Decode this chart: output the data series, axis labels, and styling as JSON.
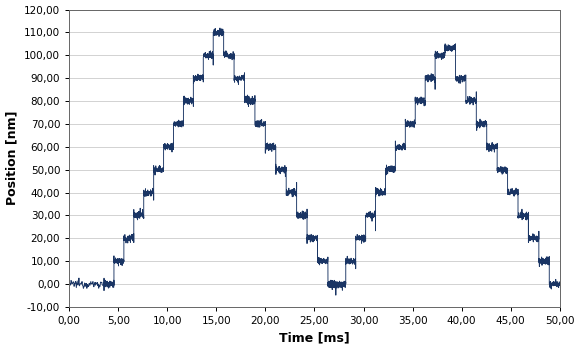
{
  "title": "",
  "xlabel": "Time [ms]",
  "ylabel": "Position [nm]",
  "xlim": [
    0,
    50
  ],
  "ylim": [
    -10,
    120
  ],
  "xticks": [
    0,
    5,
    10,
    15,
    20,
    25,
    30,
    35,
    40,
    45,
    50
  ],
  "yticks": [
    -10,
    0,
    10,
    20,
    30,
    40,
    50,
    60,
    70,
    80,
    90,
    100,
    110,
    120
  ],
  "line_color": "#1a3564",
  "line_width": 0.65,
  "bg_color": "#ffffff",
  "grid_color": "#c0c0c0",
  "figsize": [
    5.8,
    3.5
  ],
  "dpi": 100,
  "flat_noise_amp": 0.8,
  "jump_noise_amp": 2.5,
  "pts_per_step": 80,
  "pts_per_jump": 5
}
